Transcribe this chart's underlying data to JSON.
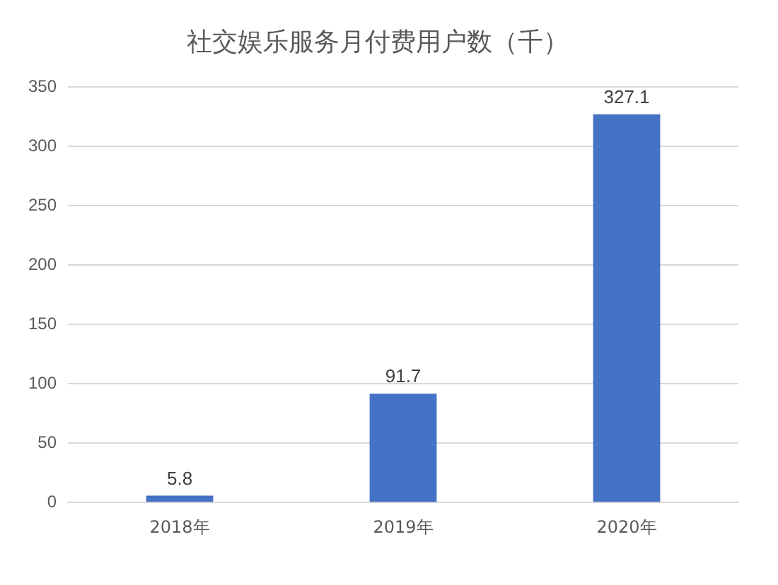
{
  "chart_data": {
    "type": "bar",
    "title": "社交娱乐服务月付费用户数（千）",
    "categories": [
      "2018年",
      "2019年",
      "2020年"
    ],
    "values": [
      5.8,
      91.7,
      327.1
    ],
    "color": "#4472c4",
    "ylim": [
      0,
      350
    ],
    "yticks": [
      0,
      50,
      100,
      150,
      200,
      250,
      300,
      350
    ],
    "grid": "y",
    "data_labels": true
  }
}
